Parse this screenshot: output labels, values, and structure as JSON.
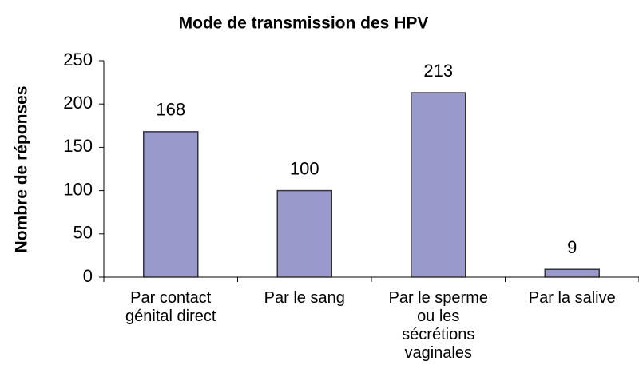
{
  "chart_data": {
    "type": "bar",
    "title": "Mode de transmission des HPV",
    "y_label": "Nombre de réponses",
    "categories": [
      "Par contact\ngénital direct",
      "Par le sang",
      "Par le sperme\nou les\nsécrétions\nvaginales",
      "Par la salive"
    ],
    "values": [
      168,
      100,
      213,
      9
    ],
    "color": "#9999cc",
    "ylim": [
      0,
      250
    ],
    "yticks": [
      0,
      50,
      100,
      150,
      200,
      250
    ],
    "grid": false
  }
}
